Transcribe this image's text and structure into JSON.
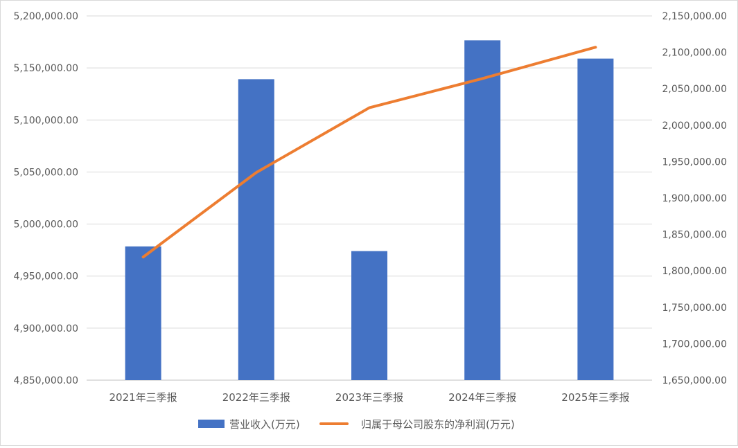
{
  "chart_data": {
    "type": "bar+line",
    "categories": [
      "2021年三季报",
      "2022年三季报",
      "2023年三季报",
      "2024年三季报",
      "2025年三季报"
    ],
    "series": [
      {
        "name": "营业收入(万元)",
        "type": "bar",
        "axis": "left",
        "color": "#4472C4",
        "values": [
          4978500,
          5139200,
          4974000,
          5176500,
          5159000
        ]
      },
      {
        "name": "归属于母公司股东的净利润(万元)",
        "type": "line",
        "axis": "right",
        "color": "#ED7D31",
        "values": [
          1819000,
          1935000,
          2024000,
          2064000,
          2107000
        ]
      }
    ],
    "y_left": {
      "ylim": [
        4850000,
        5200000
      ],
      "ticks": [
        "4,850,000.00",
        "4,900,000.00",
        "4,950,000.00",
        "5,000,000.00",
        "5,050,000.00",
        "5,100,000.00",
        "5,150,000.00",
        "5,200,000.00"
      ]
    },
    "y_right": {
      "ylim": [
        1650000,
        2150000
      ],
      "ticks": [
        "1,650,000.00",
        "1,700,000.00",
        "1,750,000.00",
        "1,800,000.00",
        "1,850,000.00",
        "1,900,000.00",
        "1,950,000.00",
        "2,000,000.00",
        "2,050,000.00",
        "2,100,000.00",
        "2,150,000.00"
      ]
    },
    "grid": true,
    "legend_position": "bottom"
  }
}
